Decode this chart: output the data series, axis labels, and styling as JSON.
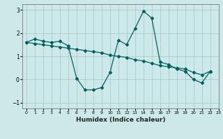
{
  "xlabel": "Humidex (Indice chaleur)",
  "bg_color": "#cce8e8",
  "grid_color": "#aacccc",
  "line_color": "#006060",
  "line1_x": [
    0,
    1,
    2,
    3,
    4,
    5,
    6,
    7,
    8,
    9,
    10,
    11,
    12,
    13,
    14,
    15,
    16,
    17,
    18,
    19,
    20,
    21,
    22
  ],
  "line1_y": [
    1.6,
    1.75,
    1.65,
    1.6,
    1.65,
    1.45,
    0.05,
    -0.45,
    -0.45,
    -0.35,
    0.3,
    1.7,
    1.5,
    2.2,
    2.95,
    2.65,
    0.75,
    0.65,
    0.45,
    0.35,
    0.0,
    -0.15,
    0.35
  ],
  "line2_x": [
    0,
    1,
    2,
    3,
    4,
    5,
    6,
    7,
    8,
    9,
    10,
    11,
    12,
    13,
    14,
    15,
    16,
    17,
    18,
    19,
    20,
    21,
    22
  ],
  "line2_y": [
    1.6,
    1.55,
    1.5,
    1.45,
    1.4,
    1.35,
    1.3,
    1.25,
    1.2,
    1.15,
    1.05,
    1.0,
    0.95,
    0.85,
    0.8,
    0.7,
    0.6,
    0.55,
    0.5,
    0.45,
    0.3,
    0.2,
    0.35
  ],
  "xlim": [
    -0.5,
    22.5
  ],
  "ylim": [
    -1.25,
    3.25
  ],
  "yticks": [
    -1,
    0,
    1,
    2,
    3
  ],
  "xticks": [
    0,
    1,
    2,
    3,
    4,
    5,
    6,
    7,
    8,
    9,
    10,
    11,
    12,
    13,
    14,
    15,
    16,
    17,
    18,
    19,
    20,
    21,
    22,
    23
  ]
}
